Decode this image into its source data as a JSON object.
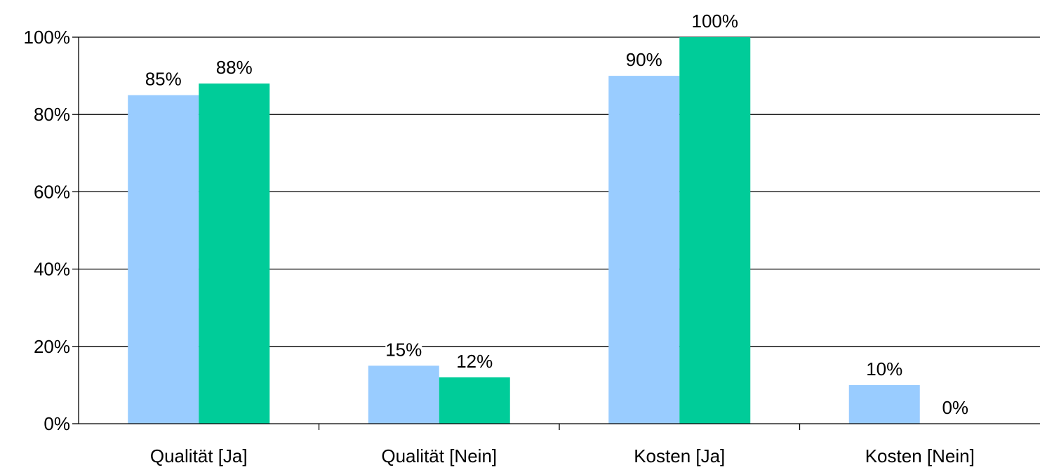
{
  "chart_data": {
    "type": "bar",
    "categories": [
      "Qualität [Ja]",
      "Qualität [Nein]",
      "Kosten [Ja]",
      "Kosten [Nein]"
    ],
    "series": [
      {
        "values": [
          85,
          15,
          90,
          10
        ],
        "color": "#99ccff"
      },
      {
        "values": [
          88,
          12,
          100,
          0
        ],
        "color": "#00cc99"
      }
    ],
    "data_labels": [
      [
        "85%",
        "15%",
        "90%",
        "10%"
      ],
      [
        "88%",
        "12%",
        "100%",
        "0%"
      ]
    ],
    "y_ticks": [
      {
        "value": 0,
        "label": "0%"
      },
      {
        "value": 20,
        "label": "20%"
      },
      {
        "value": 40,
        "label": "40%"
      },
      {
        "value": 60,
        "label": "60%"
      },
      {
        "value": 80,
        "label": "80%"
      },
      {
        "value": 100,
        "label": "100%"
      }
    ],
    "ylim": [
      0,
      100
    ],
    "grid": true,
    "legend": "none",
    "title": "",
    "xlabel": "",
    "ylabel": ""
  }
}
